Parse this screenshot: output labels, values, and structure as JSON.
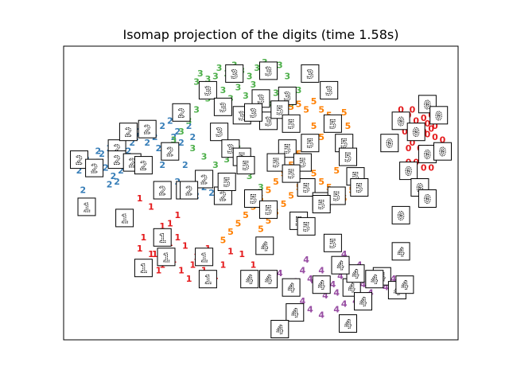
{
  "chart_data": {
    "type": "scatter",
    "title": "Isomap projection of the digits (time 1.58s)",
    "xlabel": "",
    "ylabel": "",
    "xlim": [
      0,
      100
    ],
    "ylim": [
      0,
      100
    ],
    "axis_ticks": "none",
    "grid": false,
    "legend": "none",
    "marker_style": "digit glyphs with occasional boxed digit-image thumbnails",
    "colors": {
      "0": "#e41a1c",
      "1": "#e41a1c",
      "2": "#377eb8",
      "3": "#4daf4a",
      "4": "#984ea3",
      "5": "#ff7f00"
    },
    "series": [
      {
        "digit": "0",
        "points": [
          [
            87,
            80
          ],
          [
            88,
            76
          ],
          [
            89,
            78
          ],
          [
            90,
            80
          ],
          [
            91,
            76
          ],
          [
            92,
            74
          ],
          [
            93,
            77
          ],
          [
            94,
            75
          ],
          [
            95,
            78
          ],
          [
            91,
            71
          ],
          [
            92,
            70
          ],
          [
            93,
            72
          ],
          [
            94,
            71
          ],
          [
            95,
            73
          ],
          [
            96,
            70
          ],
          [
            97,
            66
          ],
          [
            96,
            74
          ],
          [
            98,
            69
          ],
          [
            88,
            72
          ],
          [
            90,
            68
          ],
          [
            89,
            66
          ],
          [
            92,
            66
          ],
          [
            94,
            66
          ],
          [
            93,
            63
          ],
          [
            96,
            63
          ],
          [
            98,
            63
          ],
          [
            91,
            61
          ],
          [
            93,
            59
          ],
          [
            95,
            59
          ],
          [
            89,
            61
          ]
        ],
        "thumbnails": [
          [
            87,
            76
          ],
          [
            94,
            82
          ],
          [
            97,
            78
          ],
          [
            91,
            72
          ],
          [
            94,
            64
          ],
          [
            98,
            65
          ],
          [
            84,
            68
          ],
          [
            89,
            58
          ],
          [
            92,
            52
          ],
          [
            94,
            48
          ],
          [
            87,
            42
          ]
        ]
      },
      {
        "digit": "1",
        "points": [
          [
            18,
            48
          ],
          [
            21,
            45
          ],
          [
            24,
            38
          ],
          [
            19,
            34
          ],
          [
            23,
            32
          ],
          [
            18,
            30
          ],
          [
            22,
            28
          ],
          [
            26,
            32
          ],
          [
            28,
            34
          ],
          [
            30,
            31
          ],
          [
            20,
            24
          ],
          [
            24,
            24
          ],
          [
            27,
            26
          ],
          [
            29,
            22
          ],
          [
            32,
            24
          ],
          [
            35,
            22
          ],
          [
            38,
            20
          ],
          [
            40,
            24
          ],
          [
            23,
            22
          ],
          [
            31,
            19
          ],
          [
            42,
            29
          ],
          [
            36,
            30
          ],
          [
            45,
            28
          ],
          [
            48,
            24
          ],
          [
            47,
            17
          ],
          [
            52,
            19
          ],
          [
            26,
            39
          ],
          [
            28,
            42
          ],
          [
            21,
            28
          ],
          [
            33,
            27
          ]
        ],
        "thumbnails": [
          [
            4,
            45
          ],
          [
            14,
            41
          ],
          [
            24,
            34
          ],
          [
            25,
            27
          ],
          [
            19,
            23
          ],
          [
            35,
            27
          ],
          [
            36,
            19
          ],
          [
            30,
            51
          ]
        ]
      },
      {
        "digit": "2",
        "points": [
          [
            2,
            58
          ],
          [
            4,
            62
          ],
          [
            6,
            59
          ],
          [
            7,
            61
          ],
          [
            8,
            64
          ],
          [
            9,
            59
          ],
          [
            10,
            66
          ],
          [
            11,
            56
          ],
          [
            12,
            54
          ],
          [
            13,
            60
          ],
          [
            14,
            62
          ],
          [
            15,
            65
          ],
          [
            16,
            68
          ],
          [
            17,
            70
          ],
          [
            18,
            72
          ],
          [
            19,
            74
          ],
          [
            20,
            68
          ],
          [
            21,
            73
          ],
          [
            22,
            70
          ],
          [
            23,
            66
          ],
          [
            24,
            74
          ],
          [
            25,
            64
          ],
          [
            26,
            76
          ],
          [
            27,
            70
          ],
          [
            28,
            72
          ],
          [
            29,
            68
          ],
          [
            30,
            60
          ],
          [
            31,
            74
          ],
          [
            32,
            70
          ],
          [
            35,
            52
          ],
          [
            10,
            53
          ],
          [
            13,
            58
          ],
          [
            7,
            65
          ],
          [
            3,
            51
          ],
          [
            24,
            60
          ],
          [
            28,
            54
          ],
          [
            33,
            49
          ],
          [
            37,
            50
          ]
        ],
        "thumbnails": [
          [
            2,
            62
          ],
          [
            6,
            59
          ],
          [
            12,
            66
          ],
          [
            12,
            62
          ],
          [
            16,
            61
          ],
          [
            20,
            73
          ],
          [
            26,
            65
          ],
          [
            29,
            79
          ],
          [
            35,
            55
          ],
          [
            40,
            49
          ],
          [
            15,
            72
          ],
          [
            31,
            51
          ],
          [
            19,
            60
          ],
          [
            24,
            51
          ]
        ]
      },
      {
        "digit": "3",
        "points": [
          [
            33,
            90
          ],
          [
            34,
            93
          ],
          [
            36,
            91
          ],
          [
            38,
            92
          ],
          [
            39,
            95
          ],
          [
            41,
            93
          ],
          [
            43,
            96
          ],
          [
            45,
            94
          ],
          [
            47,
            92
          ],
          [
            49,
            95
          ],
          [
            51,
            97
          ],
          [
            53,
            94
          ],
          [
            55,
            96
          ],
          [
            57,
            92
          ],
          [
            60,
            87
          ],
          [
            40,
            87
          ],
          [
            42,
            84
          ],
          [
            44,
            88
          ],
          [
            46,
            85
          ],
          [
            48,
            89
          ],
          [
            50,
            85
          ],
          [
            52,
            82
          ],
          [
            54,
            86
          ],
          [
            36,
            84
          ],
          [
            33,
            80
          ],
          [
            31,
            76
          ],
          [
            29,
            72
          ],
          [
            27,
            69
          ],
          [
            32,
            66
          ],
          [
            35,
            63
          ],
          [
            38,
            60
          ],
          [
            41,
            62
          ],
          [
            44,
            66
          ],
          [
            46,
            78
          ],
          [
            56,
            81
          ],
          [
            58,
            82
          ],
          [
            47,
            56
          ],
          [
            50,
            52
          ]
        ],
        "thumbnails": [
          [
            43,
            93
          ],
          [
            52,
            94
          ],
          [
            63,
            93
          ],
          [
            68,
            87
          ],
          [
            36,
            87
          ],
          [
            40,
            81
          ],
          [
            45,
            78
          ],
          [
            50,
            84
          ],
          [
            52,
            76
          ],
          [
            48,
            79
          ],
          [
            57,
            85
          ],
          [
            39,
            72
          ],
          [
            42,
            66
          ]
        ]
      },
      {
        "digit": "4",
        "points": [
          [
            51,
            20
          ],
          [
            53,
            17
          ],
          [
            55,
            21
          ],
          [
            57,
            16
          ],
          [
            59,
            18
          ],
          [
            61,
            22
          ],
          [
            63,
            19
          ],
          [
            65,
            15
          ],
          [
            67,
            13
          ],
          [
            69,
            17
          ],
          [
            71,
            20
          ],
          [
            73,
            24
          ],
          [
            75,
            21
          ],
          [
            77,
            17
          ],
          [
            79,
            14
          ],
          [
            81,
            18
          ],
          [
            83,
            16
          ],
          [
            61,
            11
          ],
          [
            63,
            8
          ],
          [
            66,
            6
          ],
          [
            70,
            8
          ],
          [
            72,
            10
          ],
          [
            75,
            11
          ],
          [
            78,
            13
          ],
          [
            66,
            22
          ],
          [
            62,
            26
          ],
          [
            72,
            28
          ],
          [
            76,
            24
          ],
          [
            81,
            21
          ],
          [
            85,
            19
          ],
          [
            64,
            18
          ],
          [
            67,
            16
          ],
          [
            70,
            14
          ]
        ],
        "thumbnails": [
          [
            51,
            31
          ],
          [
            47,
            19
          ],
          [
            52,
            19
          ],
          [
            58,
            16
          ],
          [
            66,
            17
          ],
          [
            74,
            16
          ],
          [
            75,
            21
          ],
          [
            82,
            20
          ],
          [
            86,
            15
          ],
          [
            88,
            17
          ],
          [
            77,
            11
          ],
          [
            59,
            7
          ],
          [
            73,
            3
          ],
          [
            55,
            1
          ],
          [
            71,
            24
          ],
          [
            87,
            29
          ],
          [
            80,
            19
          ]
        ]
      },
      {
        "digit": "5",
        "points": [
          [
            55,
            79
          ],
          [
            58,
            81
          ],
          [
            60,
            82
          ],
          [
            62,
            80
          ],
          [
            64,
            83
          ],
          [
            66,
            80
          ],
          [
            68,
            78
          ],
          [
            70,
            76
          ],
          [
            72,
            79
          ],
          [
            73,
            74
          ],
          [
            68,
            73
          ],
          [
            66,
            70
          ],
          [
            64,
            74
          ],
          [
            62,
            68
          ],
          [
            60,
            64
          ],
          [
            58,
            60
          ],
          [
            56,
            57
          ],
          [
            54,
            54
          ],
          [
            52,
            51
          ],
          [
            50,
            48
          ],
          [
            48,
            45
          ],
          [
            46,
            42
          ],
          [
            44,
            39
          ],
          [
            42,
            36
          ],
          [
            40,
            33
          ],
          [
            62,
            60
          ],
          [
            64,
            57
          ],
          [
            66,
            54
          ],
          [
            68,
            52
          ],
          [
            70,
            50
          ],
          [
            72,
            48
          ],
          [
            74,
            51
          ],
          [
            60,
            52
          ],
          [
            58,
            49
          ],
          [
            56,
            46
          ],
          [
            54,
            43
          ],
          [
            52,
            40
          ],
          [
            50,
            37
          ],
          [
            70,
            58
          ],
          [
            72,
            62
          ]
        ],
        "thumbnails": [
          [
            55,
            80
          ],
          [
            58,
            75
          ],
          [
            63,
            68
          ],
          [
            69,
            75
          ],
          [
            57,
            66
          ],
          [
            54,
            61
          ],
          [
            61,
            61
          ],
          [
            62,
            52
          ],
          [
            66,
            47
          ],
          [
            70,
            49
          ],
          [
            75,
            56
          ],
          [
            72,
            68
          ],
          [
            76,
            52
          ],
          [
            66,
            46
          ],
          [
            60,
            40
          ],
          [
            69,
            32
          ],
          [
            73,
            63
          ],
          [
            62,
            38
          ],
          [
            58,
            57
          ],
          [
            45,
            63
          ],
          [
            46,
            60
          ],
          [
            48,
            48
          ],
          [
            52,
            44
          ],
          [
            41,
            54
          ]
        ]
      }
    ]
  }
}
